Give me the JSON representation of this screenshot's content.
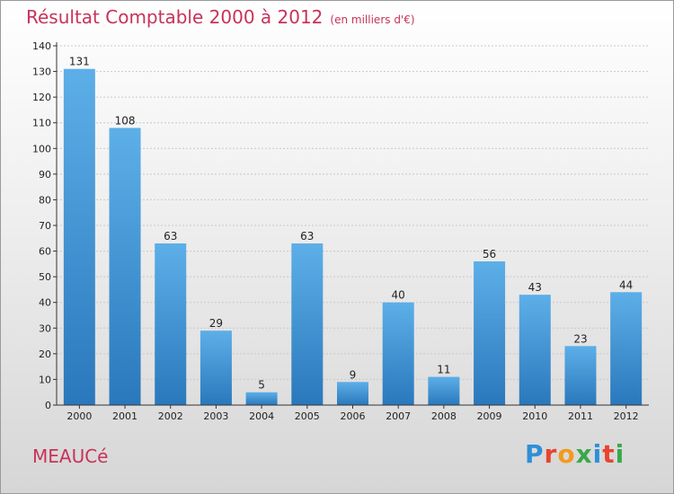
{
  "page": {
    "title": "Résultat Comptable 2000 à 2012",
    "unit": "(en milliers d'€)",
    "commune": "MEAUCé",
    "logo": [
      "P",
      "r",
      "o",
      "x",
      "i",
      "t",
      "i"
    ],
    "logo_colors": [
      "#2f8fd8",
      "#e8442f",
      "#f29b1d",
      "#3aa84a",
      "#2f8fd8",
      "#e8442f",
      "#3aa84a"
    ]
  },
  "colors": {
    "title": "#c8325a",
    "bar_dark": "#2a78bc",
    "bar_light": "#5dafe8"
  },
  "chart_data": {
    "type": "bar",
    "title": "Résultat Comptable 2000 à 2012",
    "subtitle": "(en milliers d'€)",
    "xlabel": "",
    "ylabel": "",
    "categories": [
      "2000",
      "2001",
      "2002",
      "2003",
      "2004",
      "2005",
      "2006",
      "2007",
      "2008",
      "2009",
      "2010",
      "2011",
      "2012"
    ],
    "values": [
      131,
      108,
      63,
      29,
      5,
      63,
      9,
      40,
      11,
      56,
      43,
      23,
      44
    ],
    "ylim": [
      0,
      140
    ],
    "yticks": [
      0,
      10,
      20,
      30,
      40,
      50,
      60,
      70,
      80,
      90,
      100,
      110,
      120,
      130,
      140
    ],
    "grid": true,
    "data_labels": true
  }
}
